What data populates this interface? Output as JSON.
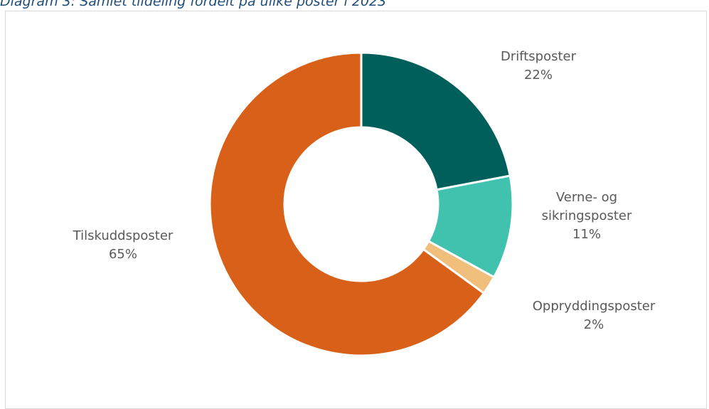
{
  "caption": "Diagram 3: Samlet tildeling fordelt på ulike poster i 2023",
  "chart_data": {
    "type": "pie",
    "donut": true,
    "title": "",
    "slices": [
      {
        "name": "Driftsposter",
        "value": 22,
        "label_line1": "Driftsposter",
        "label_line2": "",
        "percent_label": "22%",
        "color": "#005f5a"
      },
      {
        "name": "Verne- og sikringsposter",
        "value": 11,
        "label_line1": "Verne- og",
        "label_line2": "sikringsposter",
        "percent_label": "11%",
        "color": "#40c2ae"
      },
      {
        "name": "Oppryddingsposter",
        "value": 2,
        "label_line1": "Oppryddingsposter",
        "label_line2": "",
        "percent_label": "2%",
        "color": "#f0bf7c"
      },
      {
        "name": "Tilskuddsposter",
        "value": 65,
        "label_line1": "Tilskuddsposter",
        "label_line2": "",
        "percent_label": "65%",
        "color": "#d86018"
      }
    ],
    "legend": "none"
  }
}
